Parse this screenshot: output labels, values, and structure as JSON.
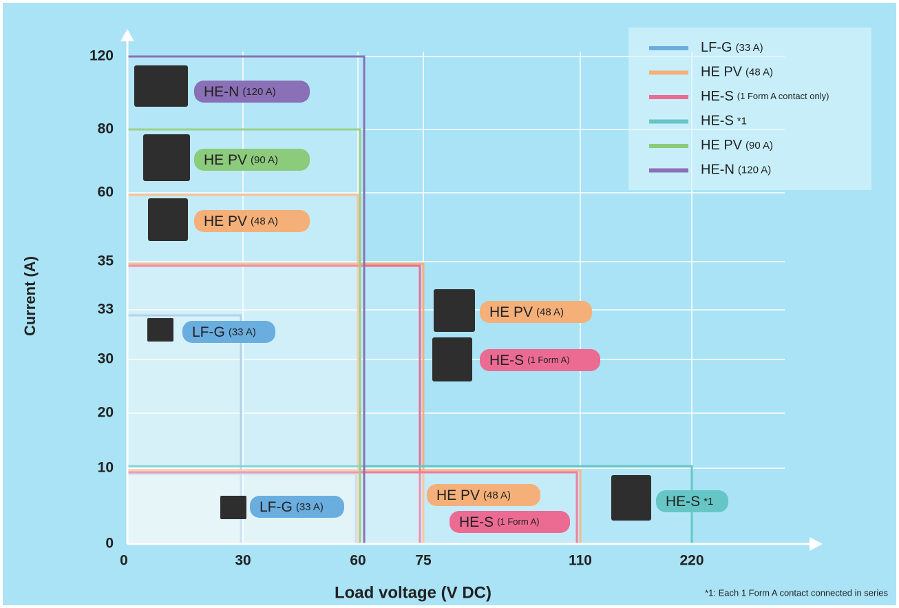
{
  "chart_data": {
    "type": "region",
    "x_label": "Load voltage (V DC)",
    "y_label": "Current (A)",
    "footnote": "*1: Each 1 Form A contact connected in series",
    "xticks": [
      0,
      30,
      60,
      75,
      110,
      220
    ],
    "yticks": [
      0,
      10,
      20,
      30,
      33,
      35,
      60,
      80,
      120
    ],
    "xlim": [
      0,
      220
    ],
    "ylim": [
      0,
      120
    ],
    "grid": true,
    "legend": "top-right",
    "series": [
      {
        "name": "LF-G",
        "rating": "(33 A)",
        "color": "#6aaee0",
        "limits": [
          [
            30,
            33
          ],
          [
            60,
            10
          ]
        ]
      },
      {
        "name": "HE PV",
        "rating": "(48 A)",
        "color": "#f5b07a",
        "limits": [
          [
            60,
            60
          ],
          [
            75,
            35
          ],
          [
            110,
            10
          ]
        ]
      },
      {
        "name": "HE-S",
        "rating": "(1 Form A contact only)",
        "color": "#ec6b93",
        "limits": [
          [
            75,
            35
          ],
          [
            110,
            10
          ]
        ]
      },
      {
        "name": "HE-S",
        "rating": "*1",
        "color": "#66c6c6",
        "limits": [
          [
            220,
            10
          ]
        ]
      },
      {
        "name": "HE PV",
        "rating": "(90 A)",
        "color": "#8ccb7c",
        "limits": [
          [
            60,
            80
          ]
        ]
      },
      {
        "name": "HE-N",
        "rating": "(120 A)",
        "color": "#8a70b6",
        "limits": [
          [
            60,
            120
          ]
        ]
      }
    ],
    "badges": [
      {
        "text": "HE-N",
        "sub": "(120 A)",
        "color": "#8a70b6"
      },
      {
        "text": "HE PV",
        "sub": "(90 A)",
        "color": "#8ccb7c"
      },
      {
        "text": "HE PV",
        "sub": "(48 A)",
        "color": "#f5b07a"
      },
      {
        "text": "LF-G",
        "sub": "(33 A)",
        "color": "#6aaee0"
      },
      {
        "text": "HE PV",
        "sub": "(48 A)",
        "color": "#f5b07a"
      },
      {
        "text": "HE-S",
        "sub": "(1 Form A)",
        "color": "#ec6b93"
      },
      {
        "text": "LF-G",
        "sub": "(33 A)",
        "color": "#6aaee0"
      },
      {
        "text": "HE PV",
        "sub": "(48 A)",
        "color": "#f5b07a"
      },
      {
        "text": "HE-S",
        "sub": "(1 Form A)",
        "color": "#ec6b93"
      },
      {
        "text": "HE-S",
        "sub": "*1",
        "color": "#66c6c6"
      }
    ]
  }
}
